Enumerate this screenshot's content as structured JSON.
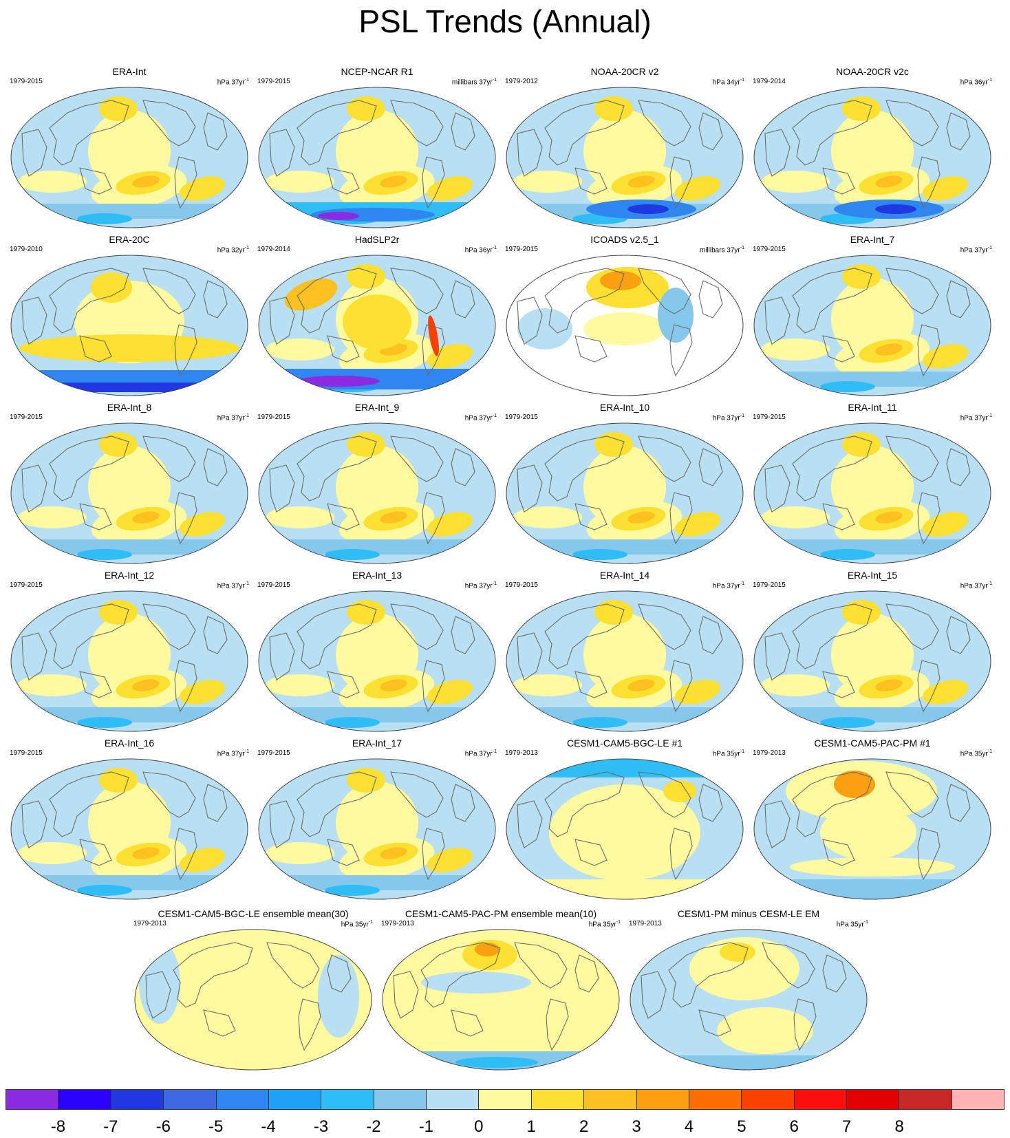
{
  "title": "PSL Trends (Annual)",
  "panels": [
    {
      "title": "ERA-Int",
      "years": "1979-2015",
      "unit": "hPa 37yr",
      "pattern": "era"
    },
    {
      "title": "NCEP-NCAR R1",
      "years": "1979-2015",
      "unit": "millibars 37yr",
      "pattern": "ncep"
    },
    {
      "title": "NOAA-20CR v2",
      "years": "1979-2012",
      "unit": "hPa 34yr",
      "pattern": "noaa"
    },
    {
      "title": "NOAA-20CR v2c",
      "years": "1979-2014",
      "unit": "hPa 36yr",
      "pattern": "noaa"
    },
    {
      "title": "ERA-20C",
      "years": "1979-2010",
      "unit": "hPa 32yr",
      "pattern": "era20c"
    },
    {
      "title": "HadSLP2r",
      "years": "1979-2014",
      "unit": "hPa 36yr",
      "pattern": "had"
    },
    {
      "title": "ICOADS v2.5_1",
      "years": "1979-2015",
      "unit": "millibars 37yr",
      "pattern": "icoads"
    },
    {
      "title": "ERA-Int_7",
      "years": "1979-2015",
      "unit": "hPa 37yr",
      "pattern": "era"
    },
    {
      "title": "ERA-Int_8",
      "years": "1979-2015",
      "unit": "hPa 37yr",
      "pattern": "era"
    },
    {
      "title": "ERA-Int_9",
      "years": "1979-2015",
      "unit": "hPa 37yr",
      "pattern": "era"
    },
    {
      "title": "ERA-Int_10",
      "years": "1979-2015",
      "unit": "hPa 37yr",
      "pattern": "era"
    },
    {
      "title": "ERA-Int_11",
      "years": "1979-2015",
      "unit": "hPa 37yr",
      "pattern": "era"
    },
    {
      "title": "ERA-Int_12",
      "years": "1979-2015",
      "unit": "hPa 37yr",
      "pattern": "era"
    },
    {
      "title": "ERA-Int_13",
      "years": "1979-2015",
      "unit": "hPa 37yr",
      "pattern": "era"
    },
    {
      "title": "ERA-Int_14",
      "years": "1979-2015",
      "unit": "hPa 37yr",
      "pattern": "era"
    },
    {
      "title": "ERA-Int_15",
      "years": "1979-2015",
      "unit": "hPa 37yr",
      "pattern": "era"
    },
    {
      "title": "ERA-Int_16",
      "years": "1979-2015",
      "unit": "hPa 37yr",
      "pattern": "era"
    },
    {
      "title": "ERA-Int_17",
      "years": "1979-2015",
      "unit": "hPa 37yr",
      "pattern": "era"
    },
    {
      "title": "CESM1-CAM5-BGC-LE #1",
      "years": "1979-2013",
      "unit": "hPa 35yr",
      "pattern": "cesm_le1"
    },
    {
      "title": "CESM1-CAM5-PAC-PM #1",
      "years": "1979-2013",
      "unit": "hPa 35yr",
      "pattern": "cesm_pm1"
    },
    {
      "title": "CESM1-CAM5-BGC-LE ensemble mean(30)",
      "years": "1979-2013",
      "unit": "hPa 35yr",
      "pattern": "le_em"
    },
    {
      "title": "CESM1-CAM5-PAC-PM ensemble mean(10)",
      "years": "1979-2013",
      "unit": "hPa 35yr",
      "pattern": "pm_em"
    },
    {
      "title": "CESM1-PM minus CESM-LE EM",
      "years": "1979-2013",
      "unit": "hPa 35yr",
      "pattern": "diff"
    }
  ],
  "unit_exponent": "-1",
  "colorbar": {
    "colors": [
      "#8a2be2",
      "#2a00ff",
      "#2038e0",
      "#3c68e0",
      "#2f86ee",
      "#1fa2f5",
      "#2fbdf5",
      "#86c8ec",
      "#b8e0f2",
      "#fffaa0",
      "#fde030",
      "#fcc020",
      "#fba010",
      "#fb7000",
      "#fb4000",
      "#fc0f0f",
      "#e00000",
      "#c82828",
      "#ffb4b4"
    ],
    "labels": [
      "-8",
      "-7",
      "-6",
      "-5",
      "-4",
      "-3",
      "-2",
      "-1",
      "0",
      "1",
      "2",
      "3",
      "4",
      "5",
      "6",
      "7",
      "8"
    ]
  },
  "palette": {
    "light_blue": "#b8e0f2",
    "mid_blue": "#86c8ec",
    "blue": "#2fbdf5",
    "deep_blue": "#2f86ee",
    "darkest_blue": "#2038e0",
    "violet": "#8a2be2",
    "light_yellow": "#fffaa0",
    "yellow": "#fde030",
    "orange": "#fcc020",
    "dark_orange": "#fba010",
    "red": "#fb4000",
    "coast": "#6b6b6b"
  }
}
